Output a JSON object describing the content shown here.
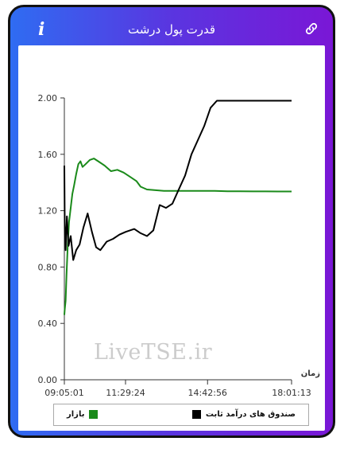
{
  "header": {
    "title": "قدرت پول درشت"
  },
  "icons": {
    "info": "info-icon",
    "link": "link-icon"
  },
  "watermark": "LiveTSE.ir",
  "colors": {
    "header_gradient_start": "#2f6cf2",
    "header_gradient_end": "#7a17d6",
    "series_market": "#1a8a1a",
    "series_fixed_income": "#000000"
  },
  "chart_data": {
    "type": "line",
    "xlabel": "زمان",
    "ylabel": "",
    "ylim": [
      0,
      2.0
    ],
    "y_ticks": [
      "0.00",
      "0.40",
      "0.80",
      "1.20",
      "1.60",
      "2.00"
    ],
    "x_ticks": [
      "09:05:01",
      "11:29:24",
      "14:42:56",
      "18:01:13"
    ],
    "grid": false,
    "legend": "bottom",
    "series": [
      {
        "name": "بازار",
        "color": "#1a8a1a",
        "x": [
          "09:05:01",
          "09:06:00",
          "09:08:00",
          "09:10:00",
          "09:13:00",
          "09:16:00",
          "09:20:00",
          "09:24:00",
          "09:28:00",
          "09:33:00",
          "09:38:00",
          "09:43:00",
          "09:48:00",
          "09:55:00",
          "10:05:00",
          "10:15:00",
          "10:25:00",
          "10:40:00",
          "10:55:00",
          "11:10:00",
          "11:25:00",
          "11:40:00",
          "11:55:00",
          "12:05:00",
          "12:20:00",
          "12:40:00",
          "13:00:00",
          "13:30:00",
          "14:00:00",
          "14:30:00",
          "15:00:00",
          "15:30:00",
          "16:00:00",
          "16:30:00",
          "17:00:00",
          "17:30:00",
          "18:01:13"
        ],
        "values": [
          0.46,
          0.5,
          0.56,
          0.74,
          0.96,
          1.12,
          1.22,
          1.32,
          1.38,
          1.46,
          1.53,
          1.55,
          1.51,
          1.53,
          1.56,
          1.57,
          1.55,
          1.52,
          1.48,
          1.49,
          1.47,
          1.44,
          1.41,
          1.37,
          1.35,
          1.345,
          1.34,
          1.34,
          1.34,
          1.34,
          1.34,
          1.338,
          1.338,
          1.337,
          1.337,
          1.336,
          1.336
        ]
      },
      {
        "name": "صندوق های درآمد ثابت",
        "color": "#000000",
        "x": [
          "09:05:01",
          "09:06:00",
          "09:08:00",
          "09:11:00",
          "09:15:00",
          "09:20:00",
          "09:26:00",
          "09:33:00",
          "09:41:00",
          "09:50:00",
          "10:00:00",
          "10:10:00",
          "10:20:00",
          "10:30:00",
          "10:45:00",
          "11:00:00",
          "11:15:00",
          "11:30:00",
          "11:50:00",
          "12:05:00",
          "12:20:00",
          "12:35:00",
          "12:50:00",
          "13:05:00",
          "13:20:00",
          "13:35:00",
          "13:50:00",
          "14:05:00",
          "14:20:00",
          "14:35:00",
          "14:50:00",
          "15:05:00",
          "15:20:00",
          "15:40:00",
          "16:00:00",
          "16:30:00",
          "17:00:00",
          "17:30:00",
          "18:01:13"
        ],
        "values": [
          1.52,
          1.1,
          0.92,
          1.16,
          0.95,
          1.02,
          0.85,
          0.92,
          0.96,
          1.08,
          1.18,
          1.05,
          0.94,
          0.92,
          0.98,
          1.0,
          1.03,
          1.05,
          1.07,
          1.04,
          1.02,
          1.06,
          1.24,
          1.22,
          1.25,
          1.35,
          1.45,
          1.6,
          1.7,
          1.8,
          1.93,
          1.98,
          1.98,
          1.98,
          1.98,
          1.98,
          1.98,
          1.98,
          1.98
        ]
      }
    ]
  }
}
